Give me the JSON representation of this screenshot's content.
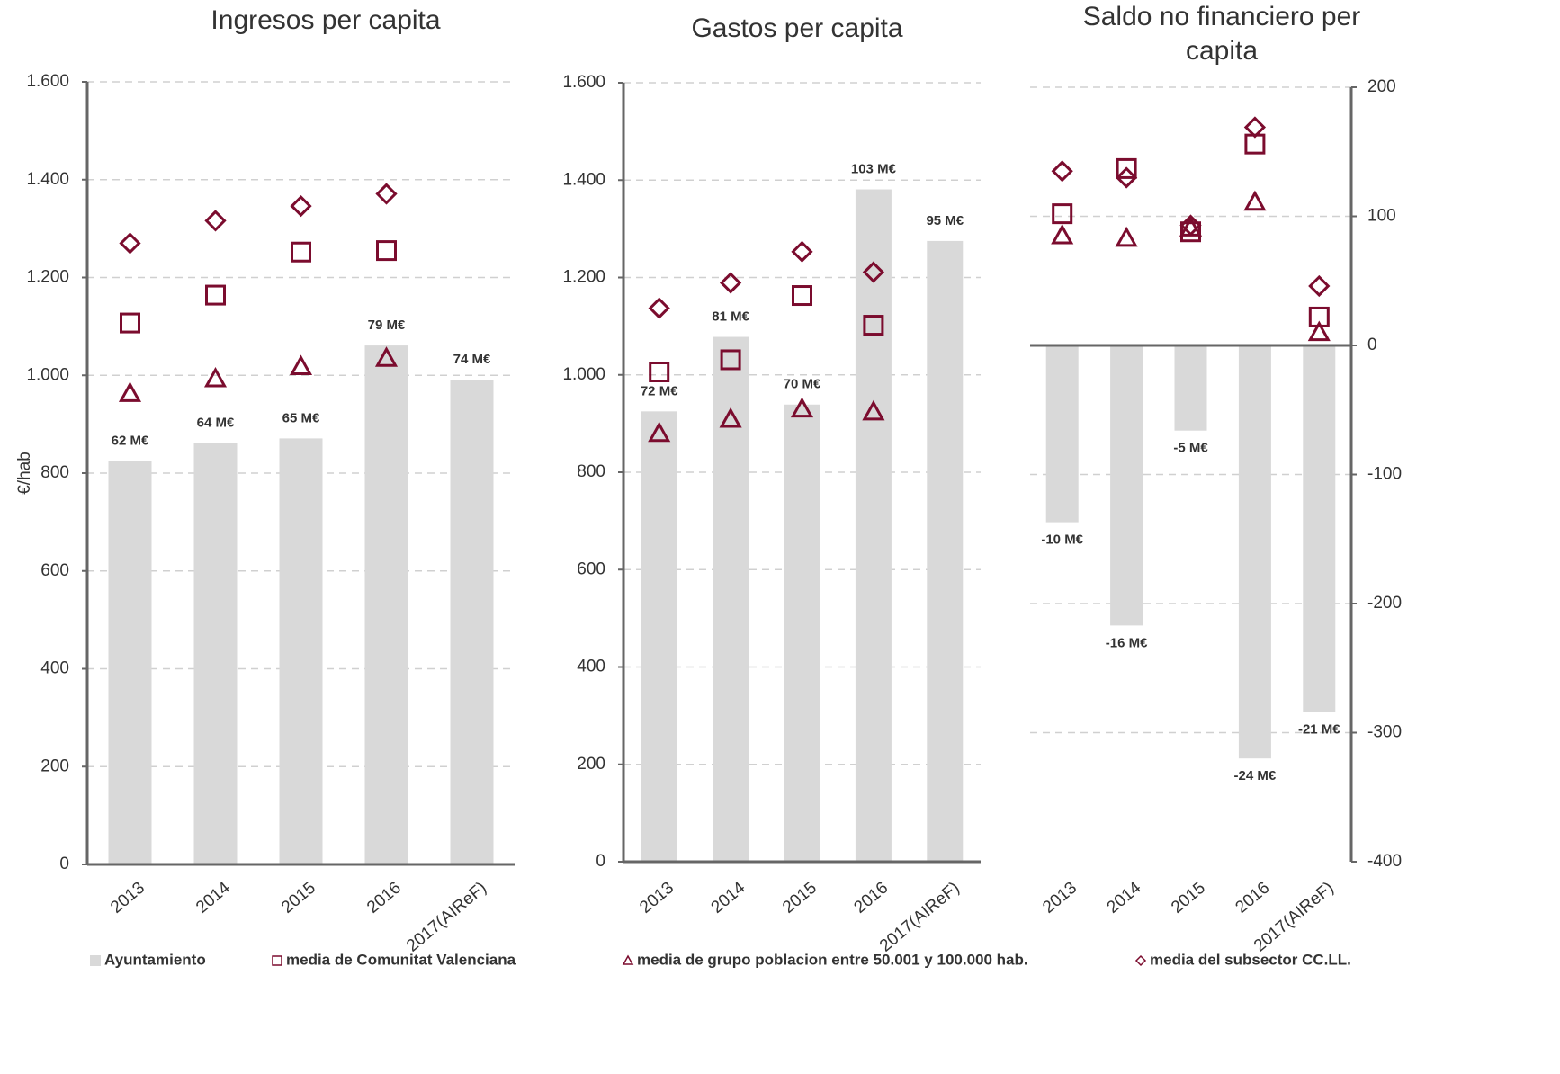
{
  "chart_data": [
    {
      "type": "bar",
      "title": "Ingresos per capita",
      "y_label": "€/hab",
      "y_axis_side": "left",
      "categories": [
        "2013",
        "2014",
        "2015",
        "2016",
        "2017(AIReF)"
      ],
      "bars": {
        "name": "Ayuntamiento",
        "color": "#d9d9d9",
        "values": [
          825,
          862,
          871,
          1061,
          991
        ],
        "annotations": [
          "62 M€",
          "64 M€",
          "65 M€",
          "79 M€",
          "74 M€"
        ]
      },
      "series": [
        {
          "name": "media de Comunitat Valenciana",
          "marker": "square",
          "color": "#7b0c2e",
          "values": [
            1107,
            1164,
            1252,
            1255,
            null
          ]
        },
        {
          "name": "media de grupo poblacion entre 50.001 y 100.000 hab.",
          "marker": "triangle",
          "color": "#7b0c2e",
          "values": [
            963,
            993,
            1018,
            1035,
            null
          ]
        },
        {
          "name": "media del subsector CC.LL.",
          "marker": "diamond",
          "color": "#7b0c2e",
          "values": [
            1270,
            1316,
            1346,
            1371,
            null
          ]
        }
      ],
      "ylim": [
        0,
        1600
      ],
      "yticks": [
        0,
        200,
        400,
        600,
        800,
        {
          "value": 1000,
          "label": "1.000"
        },
        {
          "value": 1200,
          "label": "1.200"
        },
        {
          "value": 1400,
          "label": "1.400"
        },
        {
          "value": 1600,
          "label": "1.600"
        }
      ],
      "grid": true
    },
    {
      "type": "bar",
      "title": "Gastos per capita",
      "y_axis_side": "left",
      "categories": [
        "2013",
        "2014",
        "2015",
        "2016",
        "2017(AIReF)"
      ],
      "bars": {
        "color": "#d9d9d9",
        "values": [
          925,
          1078,
          939,
          1381,
          1275
        ],
        "annotations": [
          "72 M€",
          "81 M€",
          "70 M€",
          "103 M€",
          "95 M€"
        ]
      },
      "series": [
        {
          "marker": "square",
          "color": "#7b0c2e",
          "values": [
            1006,
            1031,
            1163,
            1102,
            null
          ]
        },
        {
          "marker": "triangle",
          "color": "#7b0c2e",
          "values": [
            880,
            909,
            930,
            924,
            null
          ]
        },
        {
          "marker": "diamond",
          "color": "#7b0c2e",
          "values": [
            1137,
            1189,
            1253,
            1211,
            null
          ]
        }
      ],
      "ylim": [
        0,
        1600
      ],
      "yticks": [
        0,
        200,
        400,
        600,
        800,
        {
          "value": 1000,
          "label": "1.000"
        },
        {
          "value": 1200,
          "label": "1.200"
        },
        {
          "value": 1400,
          "label": "1.400"
        },
        {
          "value": 1600,
          "label": "1.600"
        }
      ],
      "grid": true
    },
    {
      "type": "bar",
      "title": "Saldo no financiero per capita",
      "y_axis_side": "right",
      "categories": [
        "2013",
        "2014",
        "2015",
        "2016",
        "2017(AIReF)"
      ],
      "bars": {
        "color": "#d9d9d9",
        "values": [
          -137,
          -217,
          -66,
          -320,
          -284
        ],
        "annotations": [
          "-10 M€",
          "-16 M€",
          "-5 M€",
          "-24 M€",
          "-21 M€"
        ]
      },
      "series": [
        {
          "marker": "square",
          "color": "#7b0c2e",
          "values": [
            102,
            137,
            88,
            156,
            22
          ]
        },
        {
          "marker": "triangle",
          "color": "#7b0c2e",
          "values": [
            85,
            83,
            91,
            111,
            10
          ]
        },
        {
          "marker": "diamond",
          "color": "#7b0c2e",
          "values": [
            135,
            130,
            93,
            169,
            46
          ]
        }
      ],
      "ylim": [
        -400,
        200
      ],
      "yticks": [
        -400,
        -300,
        -200,
        -100,
        0,
        100,
        200
      ],
      "grid": true
    }
  ]
}
